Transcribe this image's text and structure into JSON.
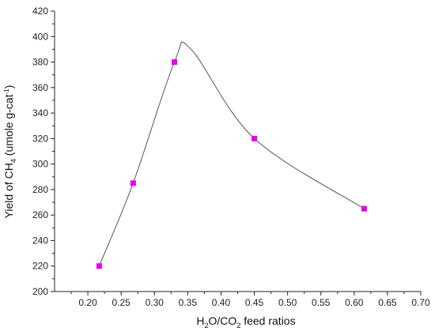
{
  "chart_data": {
    "type": "scatter",
    "xlabel": {
      "pre": "H",
      "sub1": "2",
      "mid": "O/CO",
      "sub2": "2",
      "post": " feed ratios"
    },
    "ylabel": {
      "pre": "Yield of CH",
      "sub": "4",
      "mid": " (umole g-cat",
      "sup": "-1",
      "post": ")"
    },
    "xlim": [
      0.15,
      0.7
    ],
    "ylim": [
      200,
      420
    ],
    "xticks": [
      "0.20",
      "0.25",
      "0.30",
      "0.35",
      "0.40",
      "0.45",
      "0.50",
      "0.55",
      "0.60",
      "0.65",
      "0.70"
    ],
    "yticks": [
      "200",
      "220",
      "240",
      "260",
      "280",
      "300",
      "320",
      "340",
      "360",
      "380",
      "400",
      "420"
    ],
    "series": [
      {
        "marker": "square",
        "color": "#e800e8",
        "points": [
          {
            "x": 0.217,
            "y": 220
          },
          {
            "x": 0.268,
            "y": 285
          },
          {
            "x": 0.33,
            "y": 380
          },
          {
            "x": 0.45,
            "y": 320
          },
          {
            "x": 0.615,
            "y": 265
          }
        ]
      }
    ],
    "curve": {
      "color": "#555555",
      "points": [
        {
          "x": 0.217,
          "y": 220
        },
        {
          "x": 0.268,
          "y": 285
        },
        {
          "x": 0.33,
          "y": 380
        },
        {
          "x": 0.355,
          "y": 390
        },
        {
          "x": 0.45,
          "y": 320
        },
        {
          "x": 0.615,
          "y": 265
        }
      ]
    },
    "grid": false,
    "legend": "none"
  }
}
